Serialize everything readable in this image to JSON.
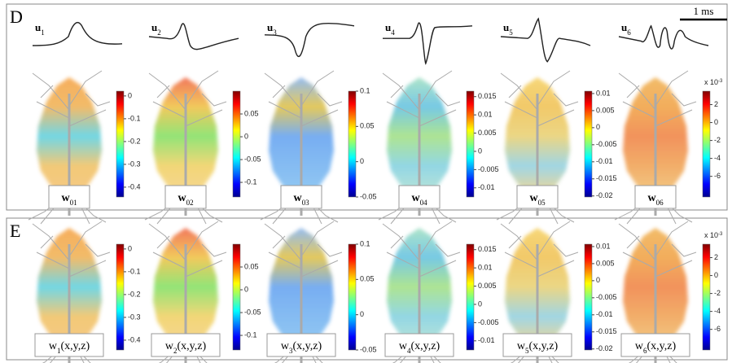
{
  "panels": [
    {
      "label": "D",
      "scale_bar": "1 ms",
      "waveforms": [
        {
          "base": "u",
          "sub": "1"
        },
        {
          "base": "u",
          "sub": "2"
        },
        {
          "base": "u",
          "sub": "3"
        },
        {
          "base": "u",
          "sub": "4"
        },
        {
          "base": "u",
          "sub": "5"
        },
        {
          "base": "u",
          "sub": "6"
        }
      ],
      "maps": [
        {
          "label": {
            "base": "w",
            "sub": "01"
          },
          "colorbar": {
            "lim": [
              -0.443,
              0.021
            ],
            "ticks": [
              0,
              -0.1,
              -0.2,
              -0.3,
              -0.4
            ]
          }
        },
        {
          "label": {
            "base": "w",
            "sub": "02"
          },
          "colorbar": {
            "lim": [
              -0.132,
              0.1
            ],
            "ticks": [
              0.05,
              0,
              -0.05,
              -0.1
            ]
          }
        },
        {
          "label": {
            "base": "w",
            "sub": "03"
          },
          "colorbar": {
            "lim": [
              -0.05,
              0.1
            ],
            "ticks": [
              0.1,
              0.05,
              0,
              -0.05
            ]
          }
        },
        {
          "label": {
            "base": "w",
            "sub": "04"
          },
          "colorbar": {
            "lim": [
              -0.0125,
              0.0165
            ],
            "ticks": [
              0.015,
              0.01,
              0.005,
              0,
              -0.005,
              -0.01
            ]
          }
        },
        {
          "label": {
            "base": "w",
            "sub": "05"
          },
          "colorbar": {
            "lim": [
              -0.0203,
              0.0107
            ],
            "ticks": [
              0.01,
              0.005,
              0,
              -0.005,
              -0.01,
              -0.015,
              -0.02
            ]
          }
        },
        {
          "label": {
            "base": "w",
            "sub": "06"
          },
          "colorbar": {
            "lim": [
              -8.3,
              3.5
            ],
            "ticks": [
              2,
              0,
              -2,
              -4,
              -6
            ],
            "scale": {
              "base": "x 10",
              "exponent": "-3"
            }
          }
        }
      ]
    },
    {
      "label": "E",
      "maps": [
        {
          "label": {
            "base": "w",
            "sub": "1",
            "suffix": "(x,y,z)"
          },
          "colorbar": {
            "lim": [
              -0.443,
              0.021
            ],
            "ticks": [
              0,
              -0.1,
              -0.2,
              -0.3,
              -0.4
            ]
          }
        },
        {
          "label": {
            "base": "w",
            "sub": "2",
            "suffix": "(x,y,z)"
          },
          "colorbar": {
            "lim": [
              -0.132,
              0.1
            ],
            "ticks": [
              0.05,
              0,
              -0.05,
              -0.1
            ]
          }
        },
        {
          "label": {
            "base": "w",
            "sub": "3",
            "suffix": "(x,y,z)"
          },
          "colorbar": {
            "lim": [
              -0.05,
              0.1
            ],
            "ticks": [
              0.1,
              0.05,
              0,
              -0.05
            ]
          }
        },
        {
          "label": {
            "base": "w",
            "sub": "4",
            "suffix": "(x,y,z)"
          },
          "colorbar": {
            "lim": [
              -0.0125,
              0.0165
            ],
            "ticks": [
              0.015,
              0.01,
              0.005,
              0,
              -0.005,
              -0.01
            ]
          }
        },
        {
          "label": {
            "base": "w",
            "sub": "5",
            "suffix": "(x,y,z)"
          },
          "colorbar": {
            "lim": [
              -0.0203,
              0.0107
            ],
            "ticks": [
              0.01,
              0.005,
              0,
              -0.005,
              -0.01,
              -0.015,
              -0.02
            ]
          }
        },
        {
          "label": {
            "base": "w",
            "sub": "6",
            "suffix": "(x,y,z)"
          },
          "colorbar": {
            "lim": [
              -8.3,
              3.5
            ],
            "ticks": [
              2,
              0,
              -2,
              -4,
              -6
            ],
            "scale": {
              "base": "x 10",
              "exponent": "-3"
            }
          }
        }
      ]
    }
  ]
}
